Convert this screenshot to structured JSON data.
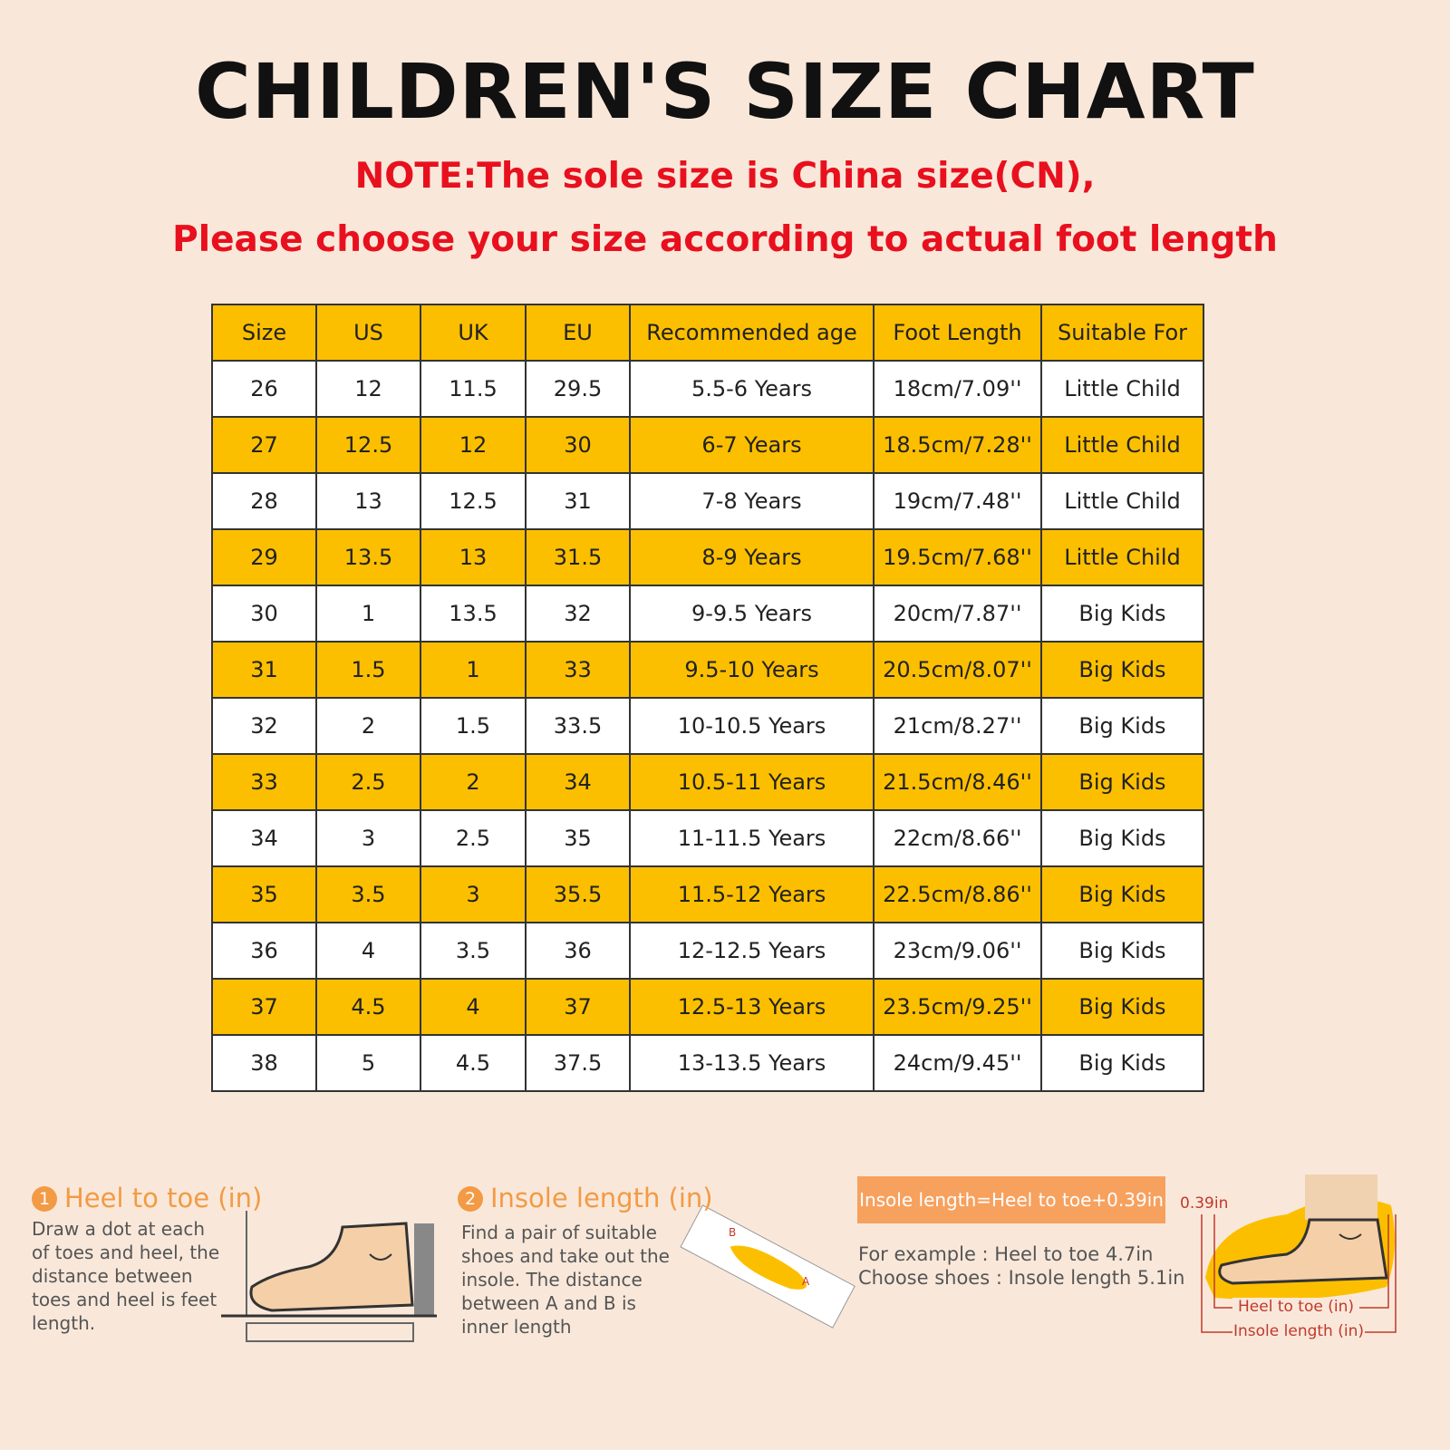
{
  "header": {
    "title": "CHILDREN'S SIZE CHART",
    "note_lines": [
      "NOTE:The sole size is China size(CN),",
      "Please choose your size according to actual foot length"
    ]
  },
  "table": {
    "columns": [
      "Size",
      "US",
      "UK",
      "EU",
      "Recommended age",
      "Foot Length",
      "Suitable For"
    ],
    "rows": [
      [
        "26",
        "12",
        "11.5",
        "29.5",
        "5.5-6 Years",
        "18cm/7.09''",
        "Little Child"
      ],
      [
        "27",
        "12.5",
        "12",
        "30",
        "6-7 Years",
        "18.5cm/7.28''",
        "Little Child"
      ],
      [
        "28",
        "13",
        "12.5",
        "31",
        "7-8 Years",
        "19cm/7.48''",
        "Little Child"
      ],
      [
        "29",
        "13.5",
        "13",
        "31.5",
        "8-9 Years",
        "19.5cm/7.68''",
        "Little Child"
      ],
      [
        "30",
        "1",
        "13.5",
        "32",
        "9-9.5 Years",
        "20cm/7.87''",
        "Big Kids"
      ],
      [
        "31",
        "1.5",
        "1",
        "33",
        "9.5-10 Years",
        "20.5cm/8.07''",
        "Big Kids"
      ],
      [
        "32",
        "2",
        "1.5",
        "33.5",
        "10-10.5 Years",
        "21cm/8.27''",
        "Big Kids"
      ],
      [
        "33",
        "2.5",
        "2",
        "34",
        "10.5-11 Years",
        "21.5cm/8.46''",
        "Big Kids"
      ],
      [
        "34",
        "3",
        "2.5",
        "35",
        "11-11.5 Years",
        "22cm/8.66''",
        "Big Kids"
      ],
      [
        "35",
        "3.5",
        "3",
        "35.5",
        "11.5-12 Years",
        "22.5cm/8.86''",
        "Big Kids"
      ],
      [
        "36",
        "4",
        "3.5",
        "36",
        "12-12.5 Years",
        "23cm/9.06''",
        "Big Kids"
      ],
      [
        "37",
        "4.5",
        "4",
        "37",
        "12.5-13 Years",
        "23.5cm/9.25''",
        "Big Kids"
      ],
      [
        "38",
        "5",
        "4.5",
        "37.5",
        "13-13.5 Years",
        "24cm/9.45''",
        "Big Kids"
      ]
    ]
  },
  "guide": {
    "steps": [
      {
        "number": "1",
        "title": "Heel to toe (in)",
        "text": "Draw a dot at each of toes and heel, the distance between toes and heel is feet length."
      },
      {
        "number": "2",
        "title": "Insole length (in)",
        "text": "Find a pair of suitable shoes and take out the insole. The distance between A and B is inner length"
      }
    ],
    "point_a": "A",
    "point_b": "B",
    "formula": "Insole length=Heel to toe+0.39in",
    "example_lines": [
      "For example : Heel to toe  4.7in",
      "Choose shoes : Insole length 5.1in"
    ],
    "diagram_labels": {
      "gap": "0.39in",
      "heel_to_toe": "Heel to toe (in)",
      "insole_length": "Insole length (in)"
    }
  }
}
